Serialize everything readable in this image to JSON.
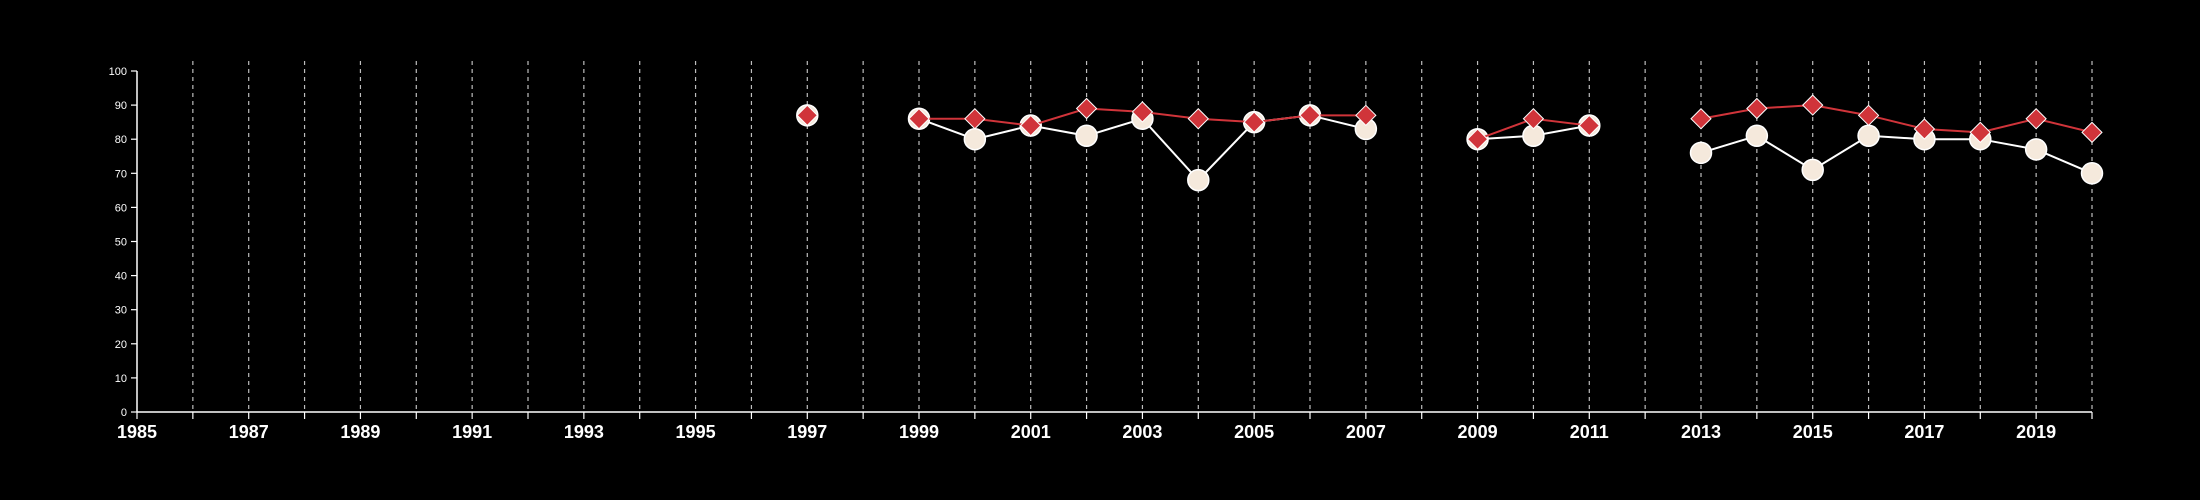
{
  "chart_data": {
    "type": "line",
    "title": "",
    "xlabel": "",
    "ylabel": "",
    "xlim": [
      1985,
      2020
    ],
    "ylim": [
      0,
      100
    ],
    "yticks": [
      0,
      10,
      20,
      30,
      40,
      50,
      60,
      70,
      80,
      90,
      100
    ],
    "xticks": [
      1985,
      1987,
      1989,
      1991,
      1993,
      1995,
      1997,
      1999,
      2001,
      2003,
      2005,
      2007,
      2009,
      2011,
      2013,
      2015,
      2017,
      2019
    ],
    "vertical_gridlines_years": [
      1986,
      1987,
      1988,
      1989,
      1990,
      1991,
      1992,
      1993,
      1994,
      1995,
      1996,
      1997,
      1998,
      1999,
      2000,
      2001,
      2002,
      2003,
      2004,
      2005,
      2006,
      2007,
      2008,
      2009,
      2010,
      2011,
      2012,
      2013,
      2014,
      2015,
      2016,
      2017,
      2018,
      2019,
      2020
    ],
    "grid": "vertical dashed",
    "background": "#000000",
    "axis_color": "#ffffff",
    "series": [
      {
        "marker": "circle",
        "color": "#f5e9dc",
        "line_color": "#ffffff",
        "segments": [
          [
            [
              1997,
              87
            ]
          ],
          [
            [
              1999,
              86
            ],
            [
              2000,
              80
            ],
            [
              2001,
              84
            ],
            [
              2002,
              81
            ],
            [
              2003,
              86
            ],
            [
              2004,
              68
            ],
            [
              2005,
              85
            ],
            [
              2006,
              87
            ],
            [
              2007,
              83
            ]
          ],
          [
            [
              2009,
              80
            ],
            [
              2010,
              81
            ],
            [
              2011,
              84
            ]
          ],
          [
            [
              2013,
              76
            ],
            [
              2014,
              81
            ],
            [
              2015,
              71
            ],
            [
              2016,
              81
            ],
            [
              2017,
              80
            ],
            [
              2018,
              80
            ],
            [
              2019,
              77
            ],
            [
              2020,
              70
            ]
          ]
        ]
      },
      {
        "marker": "diamond",
        "color": "#d0343a",
        "line_color": "#d0343a",
        "segments": [
          [
            [
              1997,
              87
            ]
          ],
          [
            [
              1999,
              86
            ],
            [
              2000,
              86
            ],
            [
              2001,
              84
            ],
            [
              2002,
              89
            ],
            [
              2003,
              88
            ],
            [
              2004,
              86
            ],
            [
              2005,
              85
            ],
            [
              2006,
              87
            ],
            [
              2007,
              87
            ]
          ],
          [
            [
              2009,
              80
            ],
            [
              2010,
              86
            ],
            [
              2011,
              84
            ]
          ],
          [
            [
              2013,
              86
            ],
            [
              2014,
              89
            ],
            [
              2015,
              90
            ],
            [
              2016,
              87
            ],
            [
              2017,
              83
            ],
            [
              2018,
              82
            ],
            [
              2019,
              86
            ],
            [
              2020,
              82
            ]
          ]
        ]
      }
    ]
  }
}
